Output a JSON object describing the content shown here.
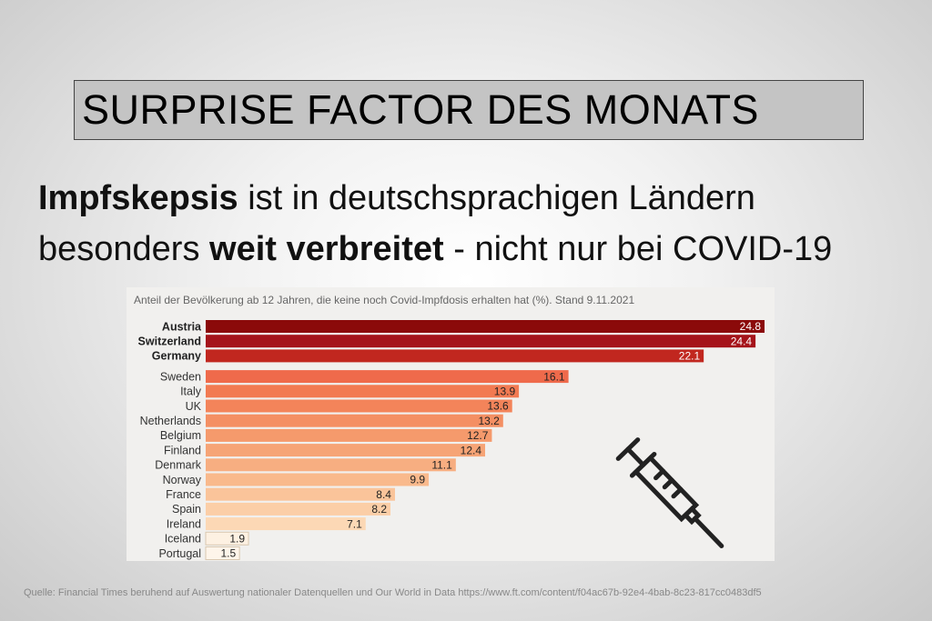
{
  "header": {
    "title": "SURPRISE FACTOR DES MONATS"
  },
  "headline": [
    [
      {
        "text": "Impfskepsis",
        "bold": true
      },
      {
        "text": " ist in deutschsprachigen Ländern",
        "bold": false
      }
    ],
    [
      {
        "text": "besonders ",
        "bold": false
      },
      {
        "text": "weit verbreitet",
        "bold": true
      },
      {
        "text": " - nicht nur bei COVID-19",
        "bold": false
      }
    ]
  ],
  "chart_data": {
    "type": "bar",
    "orientation": "horizontal",
    "title": "Anteil der Bevölkerung ab 12 Jahren, die keine noch Covid-Impfdosis erhalten hat (%). Stand 9.11.2021",
    "categories": [
      "Austria",
      "Switzerland",
      "Germany",
      "Sweden",
      "Italy",
      "UK",
      "Netherlands",
      "Belgium",
      "Finland",
      "Denmark",
      "Norway",
      "France",
      "Spain",
      "Ireland",
      "Iceland",
      "Portugal"
    ],
    "values": [
      24.8,
      24.4,
      22.1,
      16.1,
      13.9,
      13.6,
      13.2,
      12.7,
      12.4,
      11.1,
      9.9,
      8.4,
      8.2,
      7.1,
      1.9,
      1.5
    ],
    "colors": [
      "#8b0a0a",
      "#a5131a",
      "#c1271f",
      "#ef6a4b",
      "#f27a52",
      "#f3845a",
      "#f48f63",
      "#f59a6c",
      "#f6a476",
      "#f7ae81",
      "#f9b98c",
      "#fac49a",
      "#fbcea7",
      "#fcd8b5",
      "#fdf1e2",
      "#fef5ea"
    ]
  },
  "footer": {
    "source": "Quelle: Financial Times beruhend auf Auswertung nationaler Datenquellen und Our World in Data https://www.ft.com/content/f04ac67b-92e4-4bab-8c23-817cc0483df5"
  }
}
